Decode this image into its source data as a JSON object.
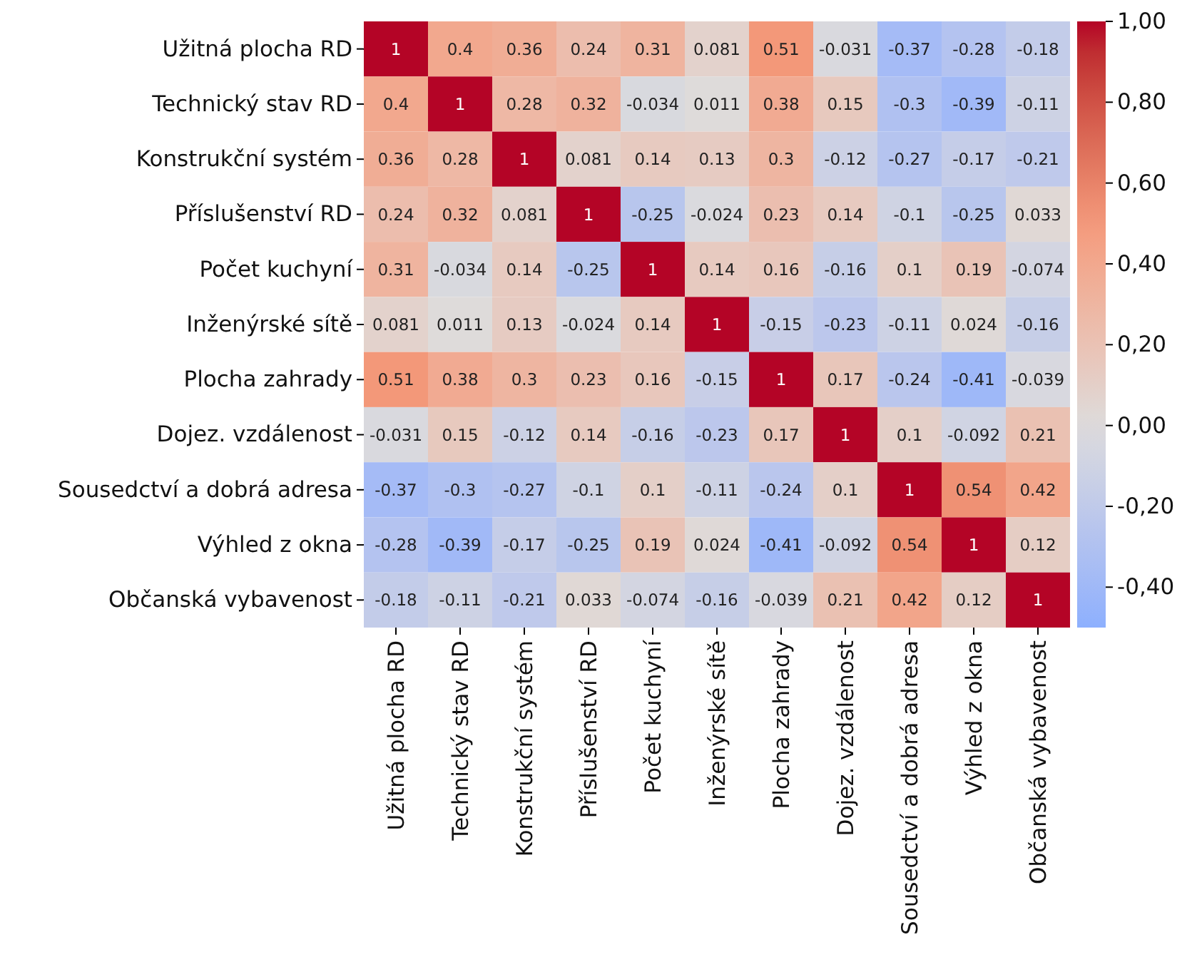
{
  "chart_data": {
    "type": "heatmap",
    "categories": [
      "Užitná plocha RD",
      "Technický stav RD",
      "Konstrukční systém",
      "Příslušenství RD",
      "Počet kuchyní",
      "Inženýrské sítě",
      "Plocha zahrady",
      "Dojez. vzdálenost",
      "Sousedctví a dobrá adresa",
      "Výhled z okna",
      "Občanská vybavenost"
    ],
    "y_categories": [
      "Užitná plocha RD",
      "Technický stav RD",
      "Konstrukční systém",
      "Příslušenství RD",
      "Počet kuchyní",
      "Inženýrské sítě",
      "Plocha zahrady",
      "Dojez. vzdálenost",
      "Sousedctví a dobrá adresa",
      "Výhled z okna",
      "Občanská vybavenost"
    ],
    "cells": [
      [
        1,
        0.4,
        0.36,
        0.24,
        0.31,
        0.081,
        0.51,
        -0.031,
        -0.37,
        -0.28,
        -0.18
      ],
      [
        0.4,
        1,
        0.28,
        0.32,
        -0.034,
        0.011,
        0.38,
        0.15,
        -0.3,
        -0.39,
        -0.11
      ],
      [
        0.36,
        0.28,
        1,
        0.081,
        0.14,
        0.13,
        0.3,
        -0.12,
        -0.27,
        -0.17,
        -0.21
      ],
      [
        0.24,
        0.32,
        0.081,
        1,
        -0.25,
        -0.024,
        0.23,
        0.14,
        -0.1,
        -0.25,
        0.033
      ],
      [
        0.31,
        -0.034,
        0.14,
        -0.25,
        1,
        0.14,
        0.16,
        -0.16,
        0.1,
        0.19,
        -0.074
      ],
      [
        0.081,
        0.011,
        0.13,
        -0.024,
        0.14,
        1,
        -0.15,
        -0.23,
        -0.11,
        0.024,
        -0.16
      ],
      [
        0.51,
        0.38,
        0.3,
        0.23,
        0.16,
        -0.15,
        1,
        0.17,
        -0.24,
        -0.41,
        -0.039
      ],
      [
        -0.031,
        0.15,
        -0.12,
        0.14,
        -0.16,
        -0.23,
        0.17,
        1,
        0.1,
        -0.092,
        0.21
      ],
      [
        -0.37,
        -0.3,
        -0.27,
        -0.1,
        0.1,
        -0.11,
        -0.24,
        0.1,
        1,
        0.54,
        0.42
      ],
      [
        -0.28,
        -0.39,
        -0.17,
        -0.25,
        0.19,
        0.024,
        -0.41,
        -0.092,
        0.54,
        1,
        0.12
      ],
      [
        -0.18,
        -0.11,
        -0.21,
        0.033,
        -0.074,
        -0.16,
        -0.039,
        0.21,
        0.42,
        0.12,
        1
      ]
    ],
    "data_labels": true,
    "clim": [
      -0.5,
      1
    ],
    "cticks": [
      {
        "value": 1,
        "label": "1,00"
      },
      {
        "value": 0.8,
        "label": "0,80"
      },
      {
        "value": 0.6,
        "label": "0,60"
      },
      {
        "value": 0.4,
        "label": "0,40"
      },
      {
        "value": 0.2,
        "label": "0,20"
      },
      {
        "value": 0,
        "label": "0,00"
      },
      {
        "value": -0.2,
        "label": "-0,20"
      },
      {
        "value": -0.4,
        "label": "-0,40"
      }
    ]
  }
}
